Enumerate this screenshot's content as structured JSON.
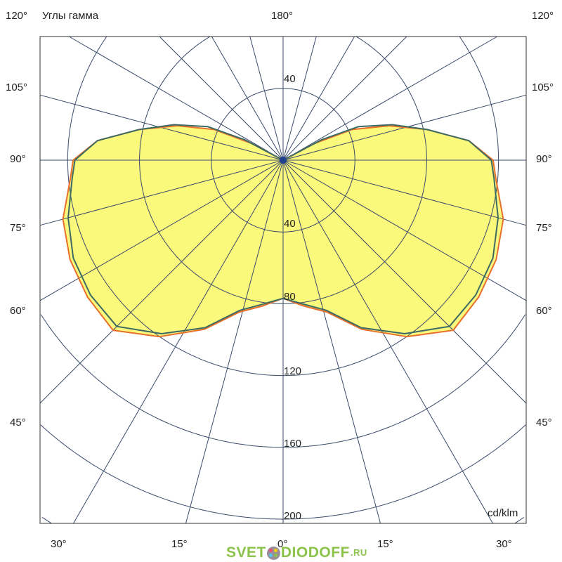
{
  "chart_data": {
    "type": "polar",
    "title": "Углы гамма",
    "unit_label": "cd/klm",
    "radial_ticks": [
      40,
      80,
      120,
      160,
      200
    ],
    "radial_range": [
      0,
      200
    ],
    "angle_step": 15,
    "angle_labels": {
      "top_left": "120°",
      "top_center": "180°",
      "top_right": "120°",
      "side": [
        "105°",
        "90°",
        "75°",
        "60°",
        "45°"
      ],
      "bottom": [
        "30°",
        "15°",
        "0°",
        "15°",
        "30°"
      ]
    },
    "ring_labels": [
      "40",
      "40",
      "80",
      "120",
      "160",
      "200"
    ],
    "symmetric": true,
    "fill_color": "#fbf97c",
    "series": [
      {
        "color": "#e8702a",
        "gamma": [
          0,
          8,
          16,
          25,
          35,
          45,
          55,
          65,
          75,
          85,
          90,
          96,
          102,
          108,
          114,
          118,
          122
        ],
        "values": [
          77,
          82,
          88,
          104,
          120,
          134,
          133,
          131,
          127,
          119,
          117,
          104,
          82,
          62,
          42,
          20,
          0
        ]
      },
      {
        "color": "#3d6b63",
        "gamma": [
          0,
          8,
          16,
          25,
          35,
          45,
          55,
          65,
          75,
          85,
          90,
          96,
          102,
          108,
          114,
          118,
          122
        ],
        "values": [
          77,
          81,
          87,
          103,
          118,
          131,
          131,
          129,
          124,
          118,
          116,
          104,
          82,
          64,
          46,
          24,
          0
        ]
      }
    ]
  },
  "logo": {
    "text": "SVET",
    "text2": "DIODOFF",
    "suffix": ".RU"
  }
}
